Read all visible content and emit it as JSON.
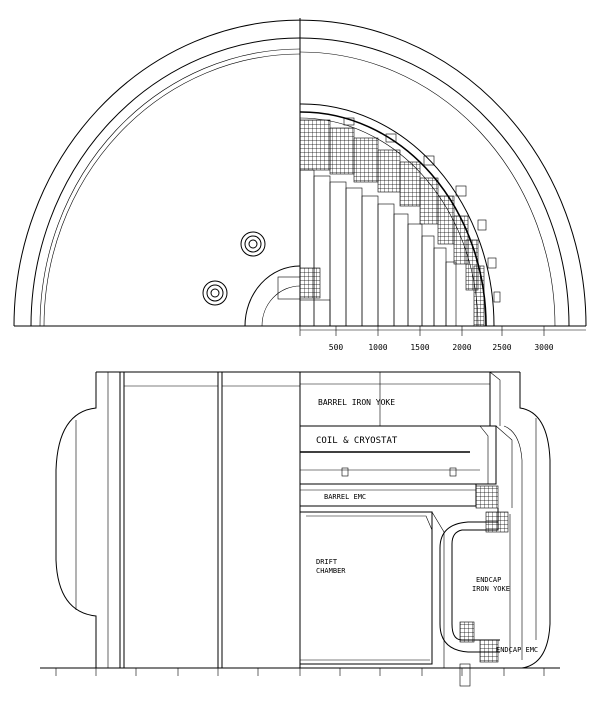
{
  "top_view": {
    "axis_ticks": [
      "500",
      "1000",
      "1500",
      "2000",
      "2500",
      "3000"
    ]
  },
  "side_view": {
    "labels": {
      "barrel_iron_yoke": "BARREL   IRON YOKE",
      "coil_cryostat": "COIL & CRYOSTAT",
      "barrel_emc": "BARREL EMC",
      "drift_chamber_line1": "DRIFT",
      "drift_chamber_line2": "CHAMBER",
      "endcap_iron_yoke_line1": "ENDCAP",
      "endcap_iron_yoke_line2": "IRON YOKE",
      "endcap_emc": "ENDCAP EMC"
    }
  },
  "colors": {
    "ink": "#000000",
    "paper": "#ffffff"
  }
}
